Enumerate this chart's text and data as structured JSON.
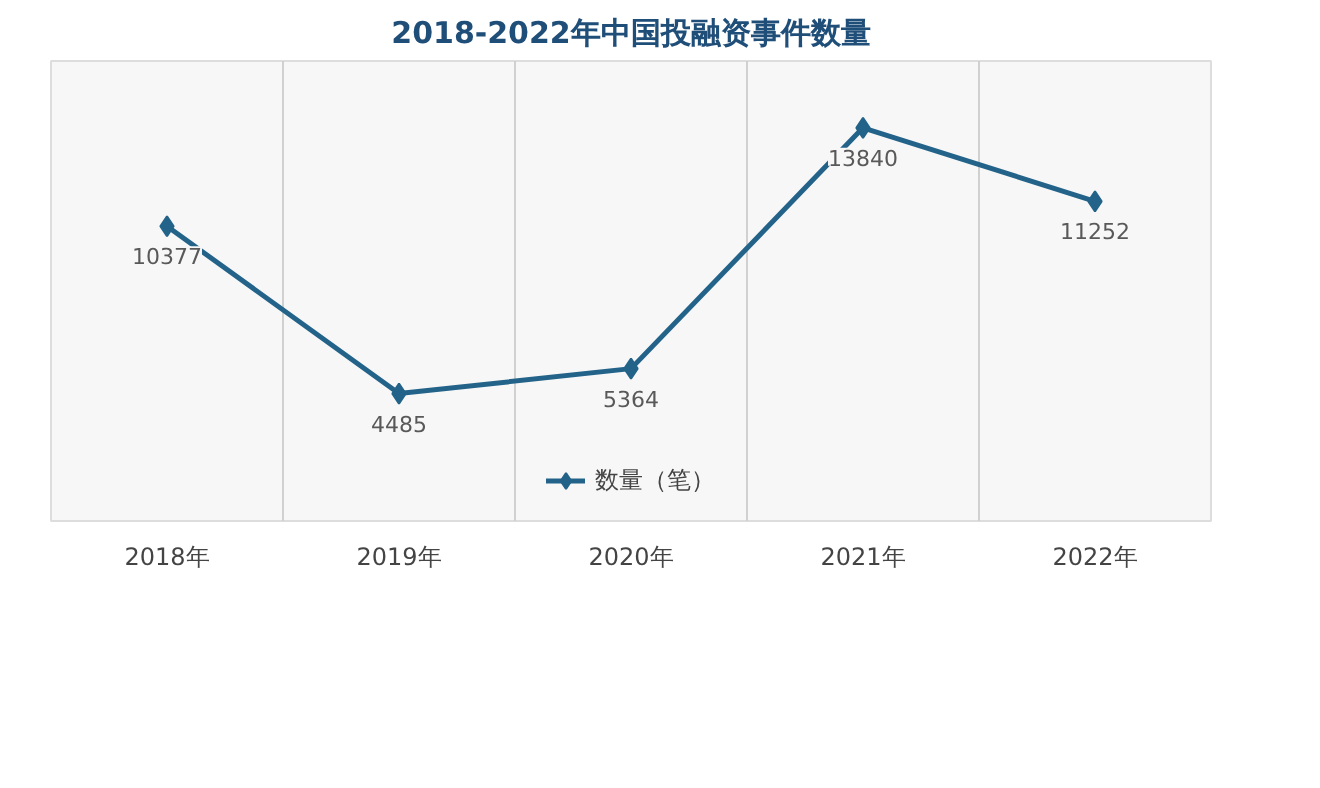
{
  "chart_data": {
    "type": "line",
    "title": "2018-2022年中国投融资事件数量",
    "categories": [
      "2018年",
      "2019年",
      "2020年",
      "2021年",
      "2022年"
    ],
    "series": [
      {
        "name": "数量（笔）",
        "color": "#236389",
        "values": [
          10377,
          4485,
          5364,
          13840,
          11252
        ]
      }
    ],
    "data_labels": true,
    "marker": "diamond",
    "line_style": "solid",
    "grid": "x",
    "legend": "bottom"
  }
}
